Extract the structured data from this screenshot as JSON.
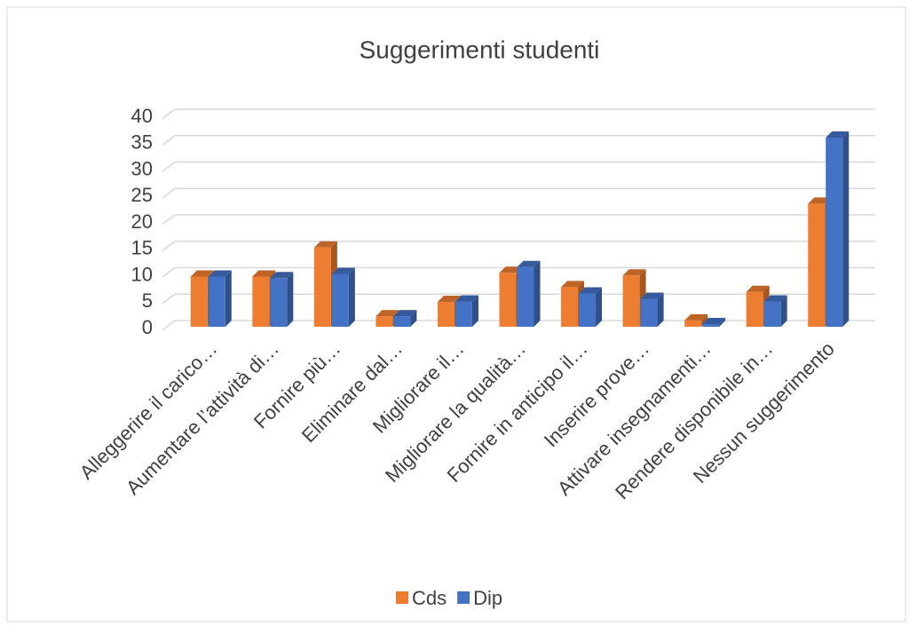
{
  "chart_data": {
    "type": "bar3d",
    "title": "Suggerimenti studenti",
    "categories": [
      "Alleggerire il carico…",
      "Aumentare l’attività di…",
      "Fornire più…",
      "Eliminare dal…",
      "Migliorare il…",
      "Migliorare la qualità…",
      "Fornire in anticipo il…",
      "Inserire prove…",
      "Attivare insegnamenti…",
      "Rendere disponibile in…",
      "Nessun suggerimento"
    ],
    "series": [
      {
        "name": "Cds",
        "color": "#ed7d31",
        "values": [
          9.5,
          9.5,
          15,
          2,
          4.7,
          10.2,
          7.5,
          9.7,
          1.2,
          6.6,
          23.3
        ]
      },
      {
        "name": "Dip",
        "color": "#4472c4",
        "values": [
          9.5,
          9.2,
          10,
          2,
          4.8,
          11.3,
          6.3,
          5.3,
          0.5,
          4.8,
          35.8
        ]
      }
    ],
    "ylim": [
      0,
      40
    ],
    "yticks": [
      0,
      5,
      10,
      15,
      20,
      25,
      30,
      35,
      40
    ],
    "grid": true,
    "legend": "bottom"
  }
}
